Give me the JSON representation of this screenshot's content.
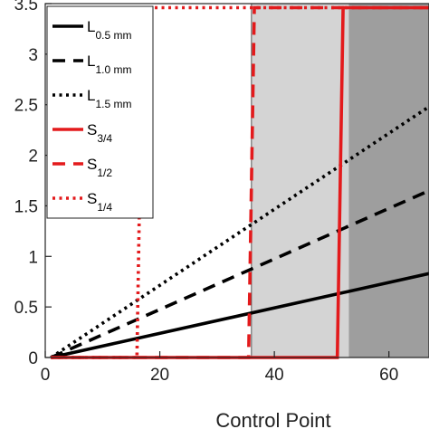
{
  "chart_data": {
    "type": "line",
    "title": "",
    "xlabel": "Control Point",
    "ylabel": "",
    "xlim": [
      0,
      67
    ],
    "ylim": [
      0,
      3.5
    ],
    "xticks": [
      0,
      20,
      40,
      60
    ],
    "yticks": [
      0,
      0.5,
      1,
      1.5,
      2,
      2.5,
      3,
      3.5
    ],
    "xtick_labels": [
      "0",
      "20",
      "40",
      "60"
    ],
    "ytick_labels": [
      "0",
      "0.5",
      "1",
      "1.5",
      "2",
      "2.5",
      "3",
      "3.5"
    ],
    "grid": false,
    "legend_position": "top-left",
    "shaded_regions": [
      {
        "x": [
          36,
          53
        ],
        "color": "#d4d4d4"
      },
      {
        "x": [
          53,
          67
        ],
        "color": "#9e9e9e"
      }
    ],
    "series": [
      {
        "name": "L",
        "sub": "0.5 mm",
        "color": "#000000",
        "style": "solid",
        "points": [
          [
            1,
            0
          ],
          [
            67,
            0.83
          ]
        ]
      },
      {
        "name": "L",
        "sub": "1.0 mm",
        "color": "#000000",
        "style": "dashed",
        "points": [
          [
            1,
            0
          ],
          [
            67,
            1.65
          ]
        ]
      },
      {
        "name": "L",
        "sub": "1.5 mm",
        "color": "#000000",
        "style": "dotted",
        "points": [
          [
            1,
            0
          ],
          [
            67,
            2.48
          ]
        ]
      },
      {
        "name": "S",
        "sub": "3/4",
        "color": "#e31a1c",
        "style": "solid",
        "points": [
          [
            1,
            0
          ],
          [
            51,
            0
          ],
          [
            52,
            3.46
          ],
          [
            67,
            3.46
          ]
        ]
      },
      {
        "name": "S",
        "sub": "1/2",
        "color": "#e31a1c",
        "style": "dashed",
        "points": [
          [
            1,
            0
          ],
          [
            35.5,
            0
          ],
          [
            36.5,
            3.46
          ],
          [
            67,
            3.46
          ]
        ]
      },
      {
        "name": "S",
        "sub": "1/4",
        "color": "#e31a1c",
        "style": "dotted",
        "points": [
          [
            1,
            0
          ],
          [
            16,
            0
          ],
          [
            17,
            3.46
          ],
          [
            67,
            3.46
          ]
        ]
      }
    ]
  }
}
